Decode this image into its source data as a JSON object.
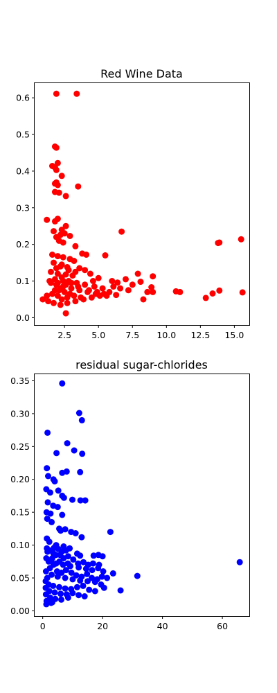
{
  "figure": {
    "background": "#ffffff"
  },
  "chart_data": [
    {
      "type": "scatter",
      "title": "Red Wine Data",
      "xlabel": "",
      "ylabel": "",
      "color": "#ff0000",
      "xlim": [
        0.3,
        16.1
      ],
      "ylim": [
        -0.02,
        0.64
      ],
      "xticks": [
        2.5,
        5.0,
        7.5,
        10.0,
        12.5,
        15.0
      ],
      "xtick_labels": [
        "2.5",
        "5.0",
        "7.5",
        "10.0",
        "12.5",
        "15.0"
      ],
      "yticks": [
        0.0,
        0.1,
        0.2,
        0.3,
        0.4,
        0.5,
        0.6
      ],
      "ytick_labels": [
        "0.0",
        "0.1",
        "0.2",
        "0.3",
        "0.4",
        "0.5",
        "0.6"
      ],
      "grid": false,
      "points": [
        [
          1.9,
          0.611
        ],
        [
          3.4,
          0.611
        ],
        [
          1.8,
          0.467
        ],
        [
          1.9,
          0.464
        ],
        [
          2.0,
          0.422
        ],
        [
          1.6,
          0.414
        ],
        [
          1.8,
          0.41
        ],
        [
          1.9,
          0.403
        ],
        [
          2.3,
          0.387
        ],
        [
          1.9,
          0.369
        ],
        [
          1.8,
          0.366
        ],
        [
          2.0,
          0.362
        ],
        [
          3.5,
          0.358
        ],
        [
          1.8,
          0.343
        ],
        [
          2.1,
          0.341
        ],
        [
          2.6,
          0.332
        ],
        [
          1.2,
          0.267
        ],
        [
          1.8,
          0.263
        ],
        [
          2.0,
          0.27
        ],
        [
          2.3,
          0.24
        ],
        [
          2.6,
          0.25
        ],
        [
          6.7,
          0.235
        ],
        [
          15.5,
          0.214
        ],
        [
          13.8,
          0.204
        ],
        [
          13.9,
          0.205
        ],
        [
          1.7,
          0.236
        ],
        [
          2.2,
          0.226
        ],
        [
          2.5,
          0.23
        ],
        [
          2.9,
          0.223
        ],
        [
          1.9,
          0.22
        ],
        [
          2.1,
          0.21
        ],
        [
          2.4,
          0.205
        ],
        [
          3.3,
          0.195
        ],
        [
          3.8,
          0.175
        ],
        [
          4.1,
          0.172
        ],
        [
          5.5,
          0.17
        ],
        [
          1.6,
          0.172
        ],
        [
          2.0,
          0.168
        ],
        [
          2.4,
          0.165
        ],
        [
          2.9,
          0.16
        ],
        [
          3.2,
          0.155
        ],
        [
          1.7,
          0.15
        ],
        [
          2.2,
          0.14
        ],
        [
          2.7,
          0.138
        ],
        [
          3.6,
          0.135
        ],
        [
          4.0,
          0.13
        ],
        [
          1.5,
          0.125
        ],
        [
          2.0,
          0.12
        ],
        [
          2.6,
          0.118
        ],
        [
          3.1,
          0.115
        ],
        [
          4.4,
          0.12
        ],
        [
          5.0,
          0.108
        ],
        [
          6.0,
          0.1
        ],
        [
          7.0,
          0.105
        ],
        [
          7.9,
          0.12
        ],
        [
          9.0,
          0.113
        ],
        [
          6.4,
          0.096
        ],
        [
          7.5,
          0.09
        ],
        [
          8.1,
          0.098
        ],
        [
          8.9,
          0.083
        ],
        [
          8.6,
          0.07
        ],
        [
          9.0,
          0.07
        ],
        [
          10.7,
          0.072
        ],
        [
          11.0,
          0.07
        ],
        [
          12.9,
          0.054
        ],
        [
          13.4,
          0.066
        ],
        [
          13.9,
          0.074
        ],
        [
          15.6,
          0.069
        ],
        [
          8.3,
          0.05
        ],
        [
          6.3,
          0.062
        ],
        [
          5.6,
          0.06
        ],
        [
          4.8,
          0.065
        ],
        [
          4.2,
          0.07
        ],
        [
          3.6,
          0.075
        ],
        [
          3.0,
          0.08
        ],
        [
          2.4,
          0.085
        ],
        [
          1.9,
          0.09
        ],
        [
          1.5,
          0.095
        ],
        [
          1.2,
          0.06
        ],
        [
          0.9,
          0.05
        ],
        [
          1.3,
          0.045
        ],
        [
          1.7,
          0.04
        ],
        [
          2.2,
          0.035
        ],
        [
          2.7,
          0.04
        ],
        [
          3.3,
          0.045
        ],
        [
          3.9,
          0.05
        ],
        [
          4.5,
          0.055
        ],
        [
          5.1,
          0.06
        ],
        [
          5.8,
          0.07
        ],
        [
          6.6,
          0.08
        ],
        [
          7.2,
          0.075
        ],
        [
          1.4,
          0.1
        ],
        [
          1.8,
          0.105
        ],
        [
          2.3,
          0.11
        ],
        [
          2.8,
          0.1
        ],
        [
          3.4,
          0.095
        ],
        [
          4.0,
          0.09
        ],
        [
          4.7,
          0.085
        ],
        [
          5.3,
          0.08
        ],
        [
          2.1,
          0.075
        ],
        [
          2.5,
          0.07
        ],
        [
          2.9,
          0.065
        ],
        [
          3.2,
          0.06
        ],
        [
          3.7,
          0.055
        ],
        [
          2.0,
          0.06
        ],
        [
          1.6,
          0.065
        ],
        [
          2.2,
          0.08
        ],
        [
          2.6,
          0.09
        ],
        [
          3.0,
          0.095
        ],
        [
          3.5,
          0.085
        ],
        [
          4.3,
          0.075
        ],
        [
          4.9,
          0.07
        ],
        [
          5.4,
          0.065
        ],
        [
          2.3,
          0.05
        ],
        [
          2.7,
          0.055
        ],
        [
          1.8,
          0.075
        ],
        [
          2.0,
          0.095
        ],
        [
          2.4,
          0.1
        ],
        [
          1.9,
          0.135
        ],
        [
          2.3,
          0.145
        ],
        [
          2.6,
          0.012
        ],
        [
          2.8,
          0.13
        ],
        [
          3.3,
          0.125
        ],
        [
          4.6,
          0.1
        ],
        [
          6.1,
          0.085
        ]
      ]
    },
    {
      "type": "scatter",
      "title": "residual sugar-chlorides",
      "xlabel": "",
      "ylabel": "",
      "color": "#0000ff",
      "xlim": [
        -2.7,
        69.0
      ],
      "ylim": [
        -0.008,
        0.36
      ],
      "xticks": [
        0,
        20,
        40,
        60
      ],
      "xtick_labels": [
        "0",
        "20",
        "40",
        "60"
      ],
      "yticks": [
        0.0,
        0.05,
        0.1,
        0.15,
        0.2,
        0.25,
        0.3,
        0.35
      ],
      "ytick_labels": [
        "0.00",
        "0.05",
        "0.10",
        "0.15",
        "0.20",
        "0.25",
        "0.30",
        "0.35"
      ],
      "grid": false,
      "points": [
        [
          6.5,
          0.346
        ],
        [
          12.2,
          0.301
        ],
        [
          13.1,
          0.29
        ],
        [
          1.6,
          0.271
        ],
        [
          8.2,
          0.255
        ],
        [
          10.5,
          0.244
        ],
        [
          4.6,
          0.24
        ],
        [
          13.2,
          0.239
        ],
        [
          1.4,
          0.217
        ],
        [
          3.6,
          0.2
        ],
        [
          6.5,
          0.21
        ],
        [
          8.0,
          0.212
        ],
        [
          12.5,
          0.211
        ],
        [
          1.8,
          0.205
        ],
        [
          4.0,
          0.197
        ],
        [
          1.2,
          0.185
        ],
        [
          2.5,
          0.18
        ],
        [
          5.2,
          0.183
        ],
        [
          6.5,
          0.175
        ],
        [
          7.1,
          0.172
        ],
        [
          9.9,
          0.169
        ],
        [
          12.6,
          0.168
        ],
        [
          14.2,
          0.168
        ],
        [
          1.7,
          0.165
        ],
        [
          3.5,
          0.16
        ],
        [
          5.0,
          0.158
        ],
        [
          1.3,
          0.15
        ],
        [
          2.6,
          0.148
        ],
        [
          6.5,
          0.146
        ],
        [
          1.5,
          0.14
        ],
        [
          3.0,
          0.135
        ],
        [
          5.5,
          0.125
        ],
        [
          6.0,
          0.122
        ],
        [
          7.5,
          0.124
        ],
        [
          9.5,
          0.12
        ],
        [
          11.0,
          0.118
        ],
        [
          13.0,
          0.112
        ],
        [
          22.6,
          0.12
        ],
        [
          1.4,
          0.11
        ],
        [
          2.2,
          0.105
        ],
        [
          4.5,
          0.1
        ],
        [
          7.0,
          0.098
        ],
        [
          9.0,
          0.095
        ],
        [
          1.6,
          0.09
        ],
        [
          3.5,
          0.088
        ],
        [
          5.8,
          0.085
        ],
        [
          8.5,
          0.083
        ],
        [
          11.5,
          0.087
        ],
        [
          12.5,
          0.084
        ],
        [
          17.0,
          0.084
        ],
        [
          18.6,
          0.085
        ],
        [
          20.0,
          0.083
        ],
        [
          1.2,
          0.08
        ],
        [
          2.8,
          0.076
        ],
        [
          4.5,
          0.072
        ],
        [
          6.8,
          0.07
        ],
        [
          9.2,
          0.068
        ],
        [
          12.0,
          0.066
        ],
        [
          14.5,
          0.064
        ],
        [
          16.5,
          0.062
        ],
        [
          18.5,
          0.065
        ],
        [
          20.2,
          0.06
        ],
        [
          21.5,
          0.05
        ],
        [
          23.5,
          0.057
        ],
        [
          1.1,
          0.06
        ],
        [
          3.0,
          0.055
        ],
        [
          5.0,
          0.052
        ],
        [
          7.5,
          0.05
        ],
        [
          10.0,
          0.048
        ],
        [
          12.5,
          0.046
        ],
        [
          15.0,
          0.045
        ],
        [
          17.5,
          0.044
        ],
        [
          19.5,
          0.04
        ],
        [
          20.5,
          0.035
        ],
        [
          26.0,
          0.031
        ],
        [
          31.6,
          0.053
        ],
        [
          65.8,
          0.074
        ],
        [
          1.0,
          0.045
        ],
        [
          2.0,
          0.04
        ],
        [
          3.5,
          0.038
        ],
        [
          5.5,
          0.036
        ],
        [
          7.5,
          0.034
        ],
        [
          9.5,
          0.033
        ],
        [
          11.5,
          0.036
        ],
        [
          13.5,
          0.038
        ],
        [
          15.5,
          0.032
        ],
        [
          17.5,
          0.03
        ],
        [
          1.0,
          0.035
        ],
        [
          2.2,
          0.03
        ],
        [
          4.0,
          0.028
        ],
        [
          6.0,
          0.026
        ],
        [
          8.0,
          0.025
        ],
        [
          10.0,
          0.027
        ],
        [
          12.0,
          0.024
        ],
        [
          14.0,
          0.022
        ],
        [
          1.1,
          0.025
        ],
        [
          2.5,
          0.02
        ],
        [
          4.2,
          0.018
        ],
        [
          6.2,
          0.017
        ],
        [
          8.5,
          0.02
        ],
        [
          1.3,
          0.015
        ],
        [
          2.8,
          0.012
        ],
        [
          1.2,
          0.01
        ],
        [
          3.2,
          0.013
        ],
        [
          1.5,
          0.05
        ],
        [
          2.4,
          0.065
        ],
        [
          3.6,
          0.07
        ],
        [
          4.8,
          0.06
        ],
        [
          6.3,
          0.058
        ],
        [
          7.8,
          0.062
        ],
        [
          9.6,
          0.058
        ],
        [
          11.2,
          0.054
        ],
        [
          13.0,
          0.052
        ],
        [
          14.8,
          0.056
        ],
        [
          16.4,
          0.05
        ],
        [
          18.2,
          0.048
        ],
        [
          19.8,
          0.052
        ],
        [
          2.0,
          0.075
        ],
        [
          3.2,
          0.08
        ],
        [
          4.4,
          0.085
        ],
        [
          5.6,
          0.075
        ],
        [
          7.0,
          0.08
        ],
        [
          8.4,
          0.072
        ],
        [
          10.2,
          0.078
        ],
        [
          11.8,
          0.072
        ],
        [
          13.6,
          0.074
        ],
        [
          15.2,
          0.07
        ],
        [
          16.8,
          0.072
        ],
        [
          18.8,
          0.07
        ],
        [
          1.4,
          0.095
        ],
        [
          2.6,
          0.092
        ],
        [
          3.8,
          0.096
        ],
        [
          5.2,
          0.094
        ],
        [
          6.4,
          0.09
        ],
        [
          7.8,
          0.092
        ]
      ]
    }
  ]
}
